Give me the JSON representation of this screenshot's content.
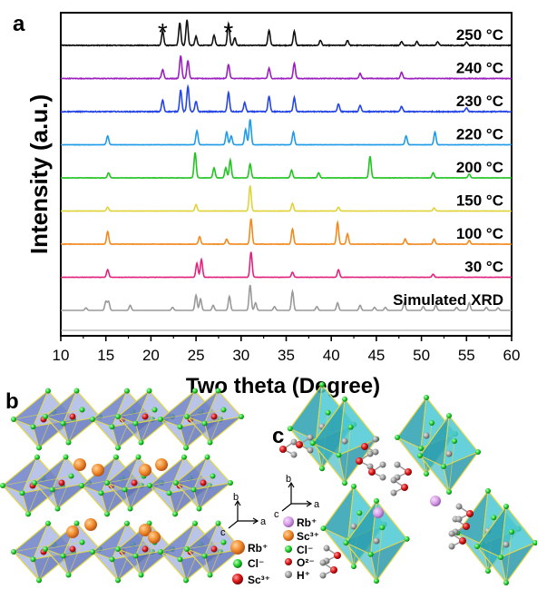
{
  "panels": {
    "a": "a",
    "b": "b",
    "c": "c"
  },
  "chart_data": {
    "type": "line",
    "title": "",
    "xlabel": "Two theta (Degree)",
    "ylabel": "Intensity (a.u.)",
    "xlim": [
      10,
      60
    ],
    "xticks": [
      "10",
      "15",
      "20",
      "25",
      "30",
      "35",
      "40",
      "45",
      "50",
      "55",
      "60"
    ],
    "grid": false,
    "annotations": [
      {
        "text": "*",
        "x": 21.3
      },
      {
        "text": "*",
        "x": 28.6
      }
    ],
    "series": [
      {
        "name": "250 °C",
        "color": "#111111",
        "noise": 0.12,
        "peaks": [
          [
            21.3,
            0.55
          ],
          [
            23.2,
            0.9
          ],
          [
            24.0,
            1.0
          ],
          [
            25.0,
            0.35
          ],
          [
            27.0,
            0.4
          ],
          [
            28.6,
            0.85
          ],
          [
            29.3,
            0.3
          ],
          [
            33.1,
            0.6
          ],
          [
            35.9,
            0.55
          ],
          [
            38.8,
            0.2
          ],
          [
            41.8,
            0.2
          ],
          [
            47.8,
            0.15
          ],
          [
            49.5,
            0.15
          ],
          [
            51.8,
            0.15
          ],
          [
            55.0,
            0.12
          ]
        ]
      },
      {
        "name": "240 °C",
        "color": "#9b1fbf",
        "noise": 0.1,
        "peaks": [
          [
            21.3,
            0.35
          ],
          [
            23.3,
            0.9
          ],
          [
            24.1,
            0.7
          ],
          [
            28.6,
            0.55
          ],
          [
            33.1,
            0.4
          ],
          [
            35.9,
            0.6
          ],
          [
            43.2,
            0.2
          ],
          [
            47.8,
            0.25
          ]
        ]
      },
      {
        "name": "230 °C",
        "color": "#2545e8",
        "noise": 0.14,
        "peaks": [
          [
            21.3,
            0.45
          ],
          [
            23.3,
            0.85
          ],
          [
            24.1,
            1.0
          ],
          [
            25.0,
            0.4
          ],
          [
            28.6,
            0.75
          ],
          [
            30.4,
            0.35
          ],
          [
            33.1,
            0.6
          ],
          [
            35.9,
            0.55
          ],
          [
            40.8,
            0.3
          ],
          [
            43.2,
            0.25
          ],
          [
            47.8,
            0.2
          ],
          [
            55.0,
            0.15
          ]
        ]
      },
      {
        "name": "220 °C",
        "color": "#1f9be8",
        "noise": 0.05,
        "peaks": [
          [
            15.2,
            0.35
          ],
          [
            25.1,
            0.55
          ],
          [
            28.4,
            0.5
          ],
          [
            28.9,
            0.35
          ],
          [
            30.5,
            0.6
          ],
          [
            31.0,
            1.0
          ],
          [
            35.8,
            0.5
          ],
          [
            48.3,
            0.35
          ],
          [
            51.5,
            0.5
          ]
        ]
      },
      {
        "name": "200 °C",
        "color": "#22c422",
        "noise": 0.05,
        "peaks": [
          [
            15.3,
            0.2
          ],
          [
            24.9,
            1.0
          ],
          [
            27.0,
            0.4
          ],
          [
            28.3,
            0.4
          ],
          [
            28.8,
            0.7
          ],
          [
            31.0,
            0.55
          ],
          [
            35.6,
            0.3
          ],
          [
            38.6,
            0.2
          ],
          [
            44.3,
            0.85
          ],
          [
            51.3,
            0.2
          ],
          [
            55.3,
            0.15
          ]
        ]
      },
      {
        "name": "150 °C",
        "color": "#e0d33a",
        "noise": 0.04,
        "peaks": [
          [
            15.2,
            0.15
          ],
          [
            25.0,
            0.25
          ],
          [
            31.0,
            1.0
          ],
          [
            35.7,
            0.3
          ],
          [
            40.8,
            0.15
          ],
          [
            51.4,
            0.12
          ]
        ]
      },
      {
        "name": "100 °C",
        "color": "#f28a1e",
        "noise": 0.06,
        "peaks": [
          [
            15.2,
            0.5
          ],
          [
            25.4,
            0.3
          ],
          [
            28.4,
            0.2
          ],
          [
            31.1,
            1.0
          ],
          [
            35.7,
            0.6
          ],
          [
            40.7,
            0.85
          ],
          [
            41.8,
            0.4
          ],
          [
            48.2,
            0.2
          ],
          [
            51.4,
            0.2
          ],
          [
            55.3,
            0.15
          ]
        ]
      },
      {
        "name": "30 °C",
        "color": "#e2237e",
        "noise": 0.05,
        "peaks": [
          [
            15.2,
            0.3
          ],
          [
            25.1,
            0.55
          ],
          [
            25.6,
            0.7
          ],
          [
            31.1,
            1.0
          ],
          [
            35.7,
            0.2
          ],
          [
            40.8,
            0.3
          ],
          [
            51.3,
            0.12
          ]
        ]
      },
      {
        "name": "Simulated XRD",
        "color": "#9a9a9a",
        "noise": 0.0,
        "peaks": [
          [
            12.8,
            0.1
          ],
          [
            15.0,
            0.35
          ],
          [
            15.3,
            0.35
          ],
          [
            17.7,
            0.2
          ],
          [
            22.4,
            0.12
          ],
          [
            25.0,
            0.6
          ],
          [
            25.5,
            0.45
          ],
          [
            26.9,
            0.2
          ],
          [
            28.7,
            0.55
          ],
          [
            31.0,
            1.0
          ],
          [
            31.6,
            0.3
          ],
          [
            33.7,
            0.15
          ],
          [
            35.7,
            0.75
          ],
          [
            38.4,
            0.15
          ],
          [
            40.7,
            0.3
          ],
          [
            43.2,
            0.2
          ],
          [
            44.8,
            0.12
          ],
          [
            46.0,
            0.12
          ],
          [
            48.1,
            0.3
          ],
          [
            50.2,
            0.15
          ],
          [
            51.6,
            0.2
          ],
          [
            53.9,
            0.12
          ],
          [
            55.3,
            0.3
          ],
          [
            57.2,
            0.12
          ],
          [
            58.5,
            0.1
          ]
        ]
      }
    ]
  },
  "panel_b": {
    "axes": {
      "b": "b",
      "a": "a",
      "c": "c"
    },
    "legend": [
      {
        "label": "Rb⁺",
        "color": "#f08a2a"
      },
      {
        "label": "Cl⁻",
        "color": "#1fcf2a"
      },
      {
        "label": "Sc³⁺",
        "color": "#d81414"
      }
    ]
  },
  "panel_c": {
    "axes": {
      "b": "b",
      "a": "a",
      "c": "c"
    },
    "legend": [
      {
        "label": "Rb⁺",
        "color": "#d79ee6"
      },
      {
        "label": "Sc³⁺",
        "color": "#f08a2a"
      },
      {
        "label": "Cl⁻",
        "color": "#1fcf2a"
      },
      {
        "label": "O²⁻",
        "color": "#d81414"
      },
      {
        "label": "H⁺",
        "color": "#9b9b9b"
      }
    ]
  }
}
